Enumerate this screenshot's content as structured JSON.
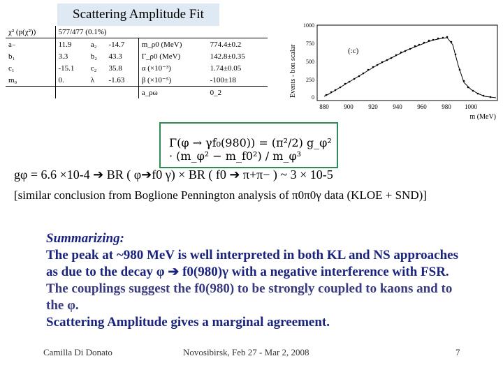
{
  "slide": {
    "title": "Scattering Amplitude Fit",
    "fit_table": {
      "header": [
        "χ² (p(χ²))",
        "577/477 (0.1%)"
      ],
      "rows": [
        [
          "a₋",
          "11.9",
          "a₂",
          "-14.7",
          "m_ρ0 (MeV)",
          "774.4±0.2"
        ],
        [
          "b₁",
          "3.3",
          "b₂",
          "43.3",
          "Γ_ρ0 (MeV)",
          "142.8±0.35"
        ],
        [
          "c₁",
          "-15.1",
          "c₂",
          "35.8",
          "α (×10⁻³)",
          "1.74±0.05"
        ],
        [
          "m₀",
          "0.",
          "λ",
          "-1.63",
          "β (×10⁻⁵)",
          "-100±18"
        ]
      ],
      "footer": [
        "a_ρω",
        "0_2"
      ]
    },
    "plot": {
      "ylabel": "Events - bon scalar",
      "xlabel": "m (MeV)",
      "panel_label": "(:c)",
      "y_ticks": [
        "1000",
        "750",
        "500",
        "250",
        "0"
      ],
      "x_ticks": [
        "880",
        "900",
        "920",
        "940",
        "960",
        "980",
        "1000"
      ]
    },
    "formula": "Γ(φ → γf₀(980)) = (π²/2) g_φ² · (m_φ² − m_f0²) / m_φ³",
    "result_line": "gφ = 6.6 ×10-4 ➔ BR ( φ➔f0 γ) × BR ( f0 ➔ π+π− ) ~ 3 × 10-5",
    "similar_line": "[similar conclusion from Boglione Pennington analysis of π0π0γ data (KLOE + SND)]",
    "summary": {
      "heading": "Summarizing:",
      "para1": "The peak at ~980 MeV is well interpreted in both KL and NS approaches as due to the decay φ ➔ f0(980)γ with a negative interference with FSR.",
      "para2": "The couplings suggest the f0(980) to be strongly coupled to kaons and to the φ.",
      "para3": "Scattering Amplitude gives a marginal agreement."
    },
    "footer": {
      "author": "Camilla Di Donato",
      "venue": "Novosibirsk, Feb 27 - Mar 2, 2008",
      "page": "7"
    }
  }
}
